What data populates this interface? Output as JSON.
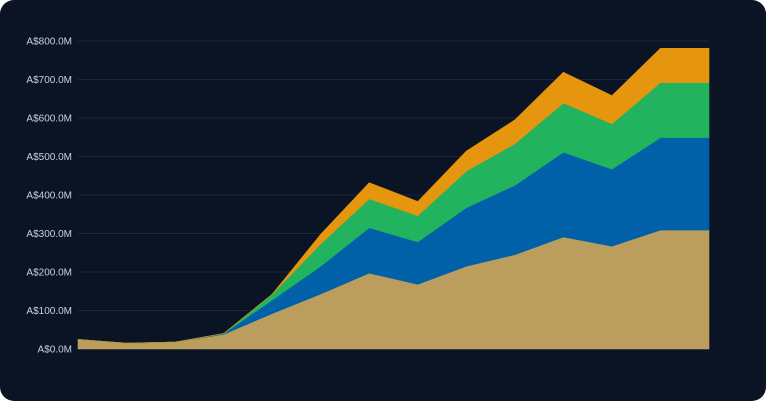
{
  "chart_data": {
    "type": "area",
    "stacked": true,
    "title": "",
    "xlabel": "",
    "ylabel": "",
    "ylim": [
      0,
      800
    ],
    "y_tick_values": [
      0,
      100,
      200,
      300,
      400,
      500,
      600,
      700,
      800
    ],
    "y_tick_labels": [
      "A$0.0M",
      "A$100.0M",
      "A$200.0M",
      "A$300.0M",
      "A$400.0M",
      "A$500.0M",
      "A$600.0M",
      "A$700.0M",
      "A$800.0M"
    ],
    "grid": true,
    "legend": "none",
    "point_count": 14,
    "series": [
      {
        "color": "#bb9e5e",
        "values": [
          25,
          15,
          18,
          38,
          92,
          143,
          197,
          168,
          215,
          245,
          291,
          267,
          309,
          309
        ]
      },
      {
        "color": "#0061a8",
        "values": [
          0,
          0,
          0,
          2,
          35,
          72,
          118,
          110,
          152,
          180,
          220,
          200,
          240,
          240
        ]
      },
      {
        "color": "#22b35e",
        "values": [
          0,
          0,
          0,
          0,
          15,
          58,
          75,
          68,
          95,
          108,
          128,
          118,
          143,
          143
        ]
      },
      {
        "color": "#e6960e",
        "values": [
          0,
          0,
          0,
          0,
          0,
          25,
          42,
          37,
          52,
          62,
          80,
          73,
          89,
          89
        ]
      }
    ]
  }
}
